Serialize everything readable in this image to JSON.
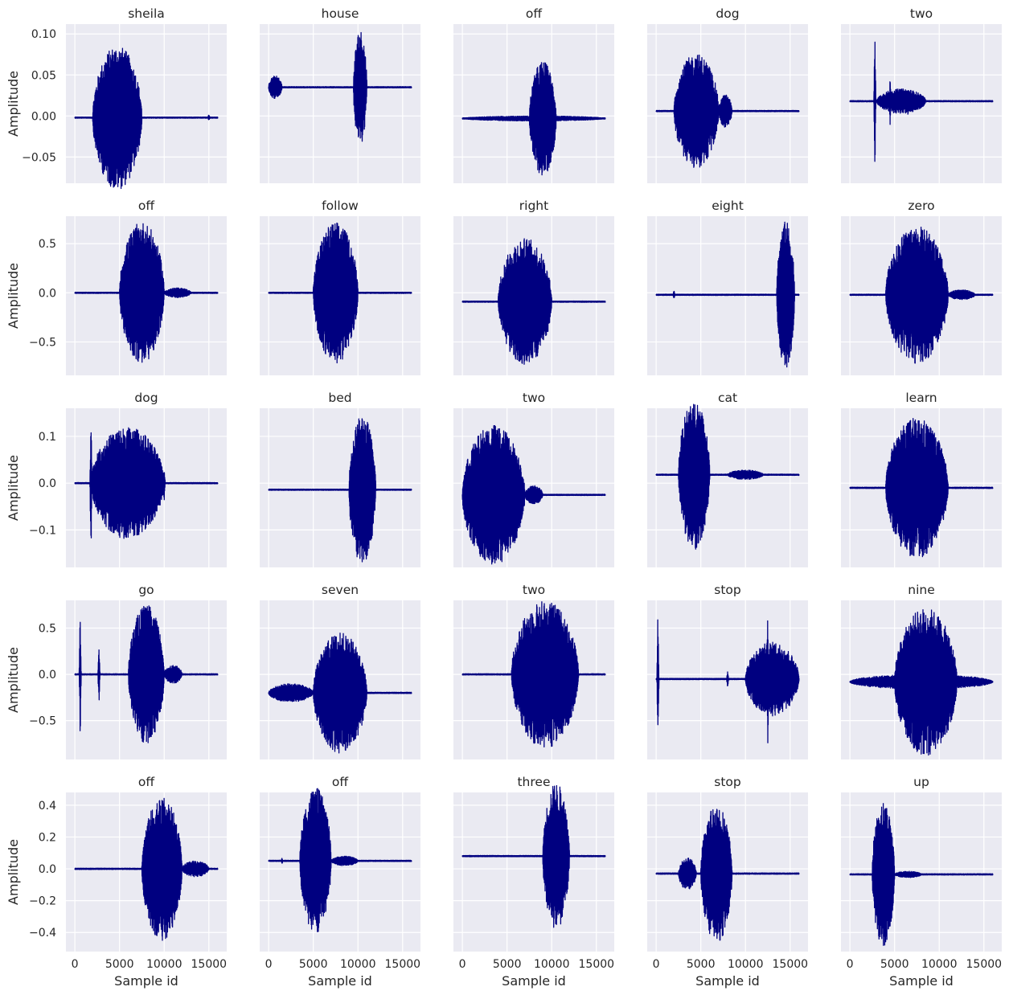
{
  "figure": {
    "wave_color": "#000080",
    "axes_face_color": "#eaeaf2",
    "grid_color": "#ffffff",
    "background": "#ffffff"
  },
  "chart_data": {
    "type": "line",
    "layout": "grid-5x5",
    "xlabel": "Sample id",
    "ylabel": "Amplitude",
    "xlim": [
      -1000,
      17000
    ],
    "xticks": [
      0,
      5000,
      10000,
      15000
    ],
    "xtick_labels": [
      "0",
      "5000",
      "10000",
      "15000"
    ],
    "grid": true,
    "sharex": true,
    "sharey": "row",
    "rows": [
      {
        "ylim": [
          -0.082,
          0.112
        ],
        "yticks": [
          -0.05,
          0.0,
          0.05,
          0.1
        ],
        "ytick_labels": [
          "−0.05",
          "0.00",
          "0.05",
          "0.10"
        ],
        "panels": [
          {
            "title": "sheila",
            "baseline": -0.002,
            "segments": [
              [
                7000,
                500,
                0.012
              ],
              [
                2000,
                7500,
                0.088
              ]
            ],
            "bursts": [
              [
                15000,
                0.004
              ]
            ]
          },
          {
            "title": "house",
            "baseline": 0.035,
            "segments": [
              [
                0,
                1500,
                0.014
              ],
              [
                9500,
                11000,
                0.07
              ]
            ],
            "bursts": []
          },
          {
            "title": "off",
            "baseline": -0.003,
            "segments": [
              [
                0,
                16000,
                0.003
              ],
              [
                7500,
                10500,
                0.07
              ]
            ],
            "bursts": []
          },
          {
            "title": "dog",
            "baseline": 0.006,
            "segments": [
              [
                2000,
                7000,
                0.07
              ],
              [
                7000,
                8500,
                0.02
              ]
            ],
            "bursts": []
          },
          {
            "title": "two",
            "baseline": 0.018,
            "segments": [
              [
                3000,
                8500,
                0.015
              ]
            ],
            "bursts": [
              [
                2800,
                0.09
              ],
              [
                4500,
                0.03
              ],
              [
                6500,
                0.02
              ]
            ]
          }
        ]
      },
      {
        "ylim": [
          -0.84,
          0.78
        ],
        "yticks": [
          -0.5,
          0.0,
          0.5
        ],
        "ytick_labels": [
          "−0.5",
          "0.0",
          "0.5"
        ],
        "panels": [
          {
            "title": "off",
            "baseline": 0.0,
            "segments": [
              [
                5000,
                10000,
                0.72
              ],
              [
                10000,
                13000,
                0.05
              ]
            ],
            "bursts": []
          },
          {
            "title": "follow",
            "baseline": 0.0,
            "segments": [
              [
                5000,
                10000,
                0.72
              ]
            ],
            "bursts": []
          },
          {
            "title": "right",
            "baseline": -0.09,
            "segments": [
              [
                4000,
                10000,
                0.65
              ]
            ],
            "bursts": []
          },
          {
            "title": "eight",
            "baseline": -0.02,
            "segments": [
              [
                13500,
                15500,
                0.75
              ]
            ],
            "bursts": [
              [
                2000,
                0.05
              ]
            ]
          },
          {
            "title": "zero",
            "baseline": -0.02,
            "segments": [
              [
                4000,
                11000,
                0.7
              ],
              [
                11000,
                14000,
                0.05
              ]
            ],
            "bursts": []
          }
        ]
      },
      {
        "ylim": [
          -0.18,
          0.16
        ],
        "yticks": [
          -0.1,
          0.0,
          0.1
        ],
        "ytick_labels": [
          "−0.1",
          "0.0",
          "0.1"
        ],
        "panels": [
          {
            "title": "dog",
            "baseline": 0.0,
            "segments": [
              [
                1800,
                10000,
                0.12
              ]
            ],
            "bursts": [
              [
                1800,
                0.17
              ],
              [
                10000,
                0.04
              ]
            ]
          },
          {
            "title": "bed",
            "baseline": -0.014,
            "segments": [
              [
                9000,
                12000,
                0.16
              ]
            ],
            "bursts": []
          },
          {
            "title": "two",
            "baseline": -0.025,
            "segments": [
              [
                0,
                7000,
                0.15
              ],
              [
                7000,
                9000,
                0.02
              ]
            ],
            "bursts": []
          },
          {
            "title": "cat",
            "baseline": 0.018,
            "segments": [
              [
                2500,
                6000,
                0.16
              ],
              [
                8000,
                12000,
                0.01
              ]
            ],
            "bursts": []
          },
          {
            "title": "learn",
            "baseline": -0.01,
            "segments": [
              [
                4000,
                11000,
                0.15
              ]
            ],
            "bursts": []
          }
        ]
      },
      {
        "ylim": [
          -0.92,
          0.8
        ],
        "yticks": [
          -0.5,
          0.0,
          0.5
        ],
        "ytick_labels": [
          "−0.5",
          "0.0",
          "0.5"
        ],
        "panels": [
          {
            "title": "go",
            "baseline": 0.0,
            "segments": [
              [
                6000,
                10000,
                0.75
              ],
              [
                10000,
                12000,
                0.1
              ]
            ],
            "bursts": [
              [
                600,
                0.7
              ],
              [
                2700,
                0.4
              ]
            ]
          },
          {
            "title": "seven",
            "baseline": -0.2,
            "segments": [
              [
                0,
                5000,
                0.1
              ],
              [
                5000,
                11000,
                0.65
              ]
            ],
            "bursts": []
          },
          {
            "title": "two",
            "baseline": 0.0,
            "segments": [
              [
                5500,
                13000,
                0.8
              ]
            ],
            "bursts": []
          },
          {
            "title": "stop",
            "baseline": -0.05,
            "segments": [
              [
                10000,
                16000,
                0.4
              ]
            ],
            "bursts": [
              [
                200,
                0.8
              ],
              [
                12500,
                0.8
              ],
              [
                8000,
                0.1
              ]
            ]
          },
          {
            "title": "nine",
            "baseline": -0.08,
            "segments": [
              [
                0,
                16000,
                0.08
              ],
              [
                5000,
                12000,
                0.8
              ]
            ],
            "bursts": []
          }
        ]
      },
      {
        "ylim": [
          -0.52,
          0.48
        ],
        "yticks": [
          -0.4,
          -0.2,
          0.0,
          0.2,
          0.4
        ],
        "ytick_labels": [
          "−0.4",
          "−0.2",
          "0.0",
          "0.2",
          "0.4"
        ],
        "panels": [
          {
            "title": "off",
            "baseline": 0.0,
            "segments": [
              [
                7500,
                12000,
                0.45
              ],
              [
                12000,
                15000,
                0.05
              ]
            ],
            "bursts": []
          },
          {
            "title": "off",
            "baseline": 0.05,
            "segments": [
              [
                3500,
                7000,
                0.46
              ],
              [
                7000,
                10000,
                0.03
              ]
            ],
            "bursts": [
              [
                1500,
                0.02
              ]
            ]
          },
          {
            "title": "three",
            "baseline": 0.08,
            "segments": [
              [
                9000,
                12000,
                0.46
              ]
            ],
            "bursts": []
          },
          {
            "title": "stop",
            "baseline": -0.03,
            "segments": [
              [
                2500,
                4500,
                0.1
              ],
              [
                5000,
                8500,
                0.44
              ]
            ],
            "bursts": []
          },
          {
            "title": "up",
            "baseline": -0.035,
            "segments": [
              [
                2500,
                5000,
                0.46
              ],
              [
                5000,
                8000,
                0.02
              ]
            ],
            "bursts": []
          }
        ]
      }
    ]
  }
}
